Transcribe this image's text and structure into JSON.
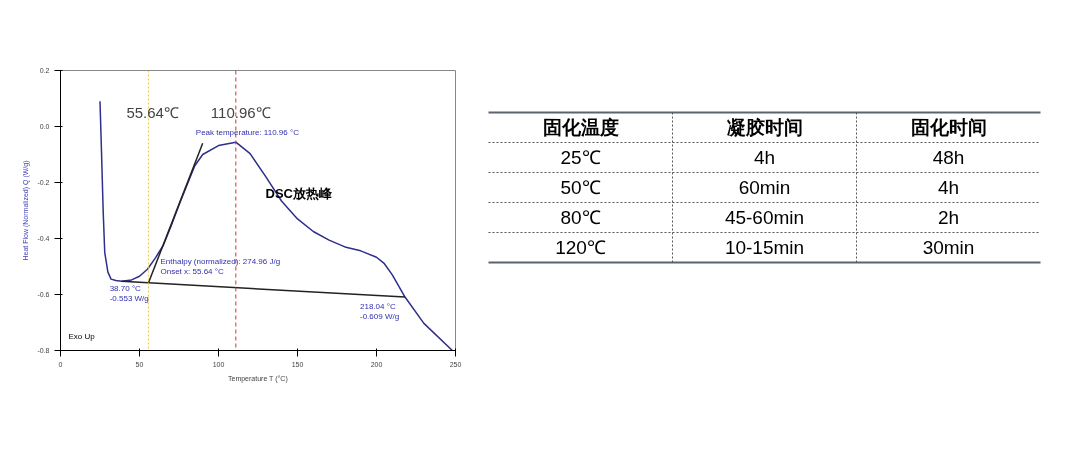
{
  "chart_data": [
    {
      "type": "line",
      "xlabel": "Temperature T (°C)",
      "ylabel": "Heat Flow (Normalized) Q (W/g)",
      "xlim": [
        0,
        250
      ],
      "ylim": [
        -0.8,
        0.2
      ],
      "xticks": [
        0,
        50,
        100,
        150,
        200,
        250
      ],
      "yticks": [
        {
          "value": 0.2,
          "label": "0.2"
        },
        {
          "value": 0,
          "label": "0.0"
        },
        {
          "value": -0.2,
          "label": "-0.2"
        },
        {
          "value": -0.4,
          "label": "-0.4"
        },
        {
          "value": -0.6,
          "label": "-0.6"
        },
        {
          "value": -0.8,
          "label": "-0.8"
        }
      ],
      "grid": false,
      "series": [
        {
          "color": "#2e2e8c",
          "x": [
            25,
            26,
            27,
            28,
            30,
            32,
            35,
            38.7,
            45,
            50,
            55,
            60,
            65,
            70,
            75,
            80,
            85,
            90,
            100,
            110.96,
            120,
            130,
            140,
            150,
            160,
            170,
            180,
            190,
            200,
            205,
            210,
            218.04,
            230,
            248
          ],
          "values": [
            0.09,
            -0.1,
            -0.3,
            -0.45,
            -0.52,
            -0.545,
            -0.55,
            -0.553,
            -0.548,
            -0.535,
            -0.51,
            -0.47,
            -0.425,
            -0.355,
            -0.28,
            -0.21,
            -0.14,
            -0.1,
            -0.068,
            -0.056,
            -0.097,
            -0.18,
            -0.267,
            -0.33,
            -0.375,
            -0.406,
            -0.43,
            -0.444,
            -0.467,
            -0.49,
            -0.53,
            -0.609,
            -0.703,
            -0.8
          ]
        },
        {
          "color": "#222222",
          "x": [
            38.7,
            218.04
          ],
          "values": [
            -0.553,
            -0.609
          ]
        },
        {
          "color": "#222222",
          "x": [
            55.64,
            90
          ],
          "values": [
            -0.559,
            -0.06
          ]
        }
      ],
      "ref_lines": [
        {
          "axis": "x",
          "value": 55.64,
          "label": "55.64℃",
          "color": "#e8c840",
          "line_style": "dotted"
        },
        {
          "axis": "x",
          "value": 110.96,
          "label": "110.96℃",
          "color": "#e03030",
          "line_style": "dashed"
        }
      ],
      "annotations": [
        {
          "text": "Peak temperature: 110.96 °C",
          "x": 110.96,
          "y": -0.056
        },
        "Enthalpy (normalized): 274.96 J/g",
        "Onset x: 55.64 °C",
        {
          "text": "38.70 °C",
          "x": 38.7,
          "y": -0.553
        },
        {
          "text": "-0.553 W/g",
          "x": 38.7,
          "y": -0.553
        },
        {
          "text": "218.04 °C",
          "x": 218.04,
          "y": -0.609
        },
        {
          "text": "-0.609 W/g",
          "x": 218.04,
          "y": -0.609
        },
        "DSC放热峰",
        "Exo Up"
      ]
    },
    {
      "type": "other",
      "cell_labels": [
        [
          "固化温度",
          "凝胶时间",
          "固化时间"
        ],
        [
          "25℃",
          "4h",
          "48h"
        ],
        [
          "50℃",
          "60min",
          "4h"
        ],
        [
          "80℃",
          "45-60min",
          "2h"
        ],
        [
          "120℃",
          "10-15min",
          "30min"
        ]
      ]
    }
  ]
}
